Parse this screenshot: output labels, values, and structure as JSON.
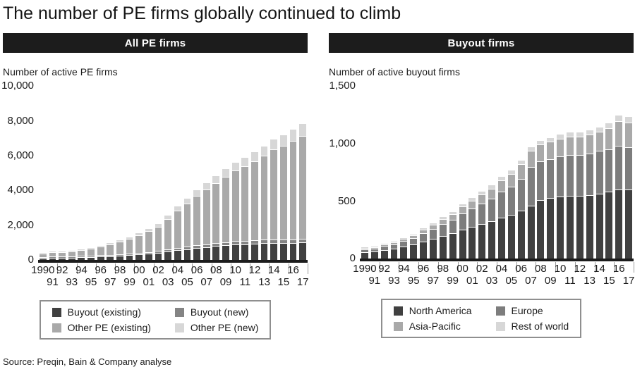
{
  "page": {
    "title": "The number of PE firms globally continued to climb",
    "source": "Source: Preqin, Bain & Company analyse"
  },
  "panels": [
    {
      "band_label": "All PE firms",
      "axis_title": "Number of active PE firms"
    },
    {
      "band_label": "Buyout firms",
      "axis_title": "Number of active buyout firms"
    }
  ],
  "colors": {
    "ink": "#1c1c1c",
    "band_bg": "#1c1c1c",
    "band_text": "#ffffff",
    "axis_tick": "#9b9b9b",
    "legend_border": "#8f8f8f",
    "dark": "#404040",
    "mid_dark": "#848484",
    "mid": "#a9a9a9",
    "light": "#d7d7d7"
  },
  "chart_data": [
    {
      "type": "bar",
      "stacked": true,
      "title": "All PE firms",
      "ylabel": "Number of active PE firms",
      "xlabel": "",
      "ylim": [
        0,
        10000
      ],
      "grid": false,
      "legend_position": "bottom",
      "y_ticks": [
        {
          "v": 10000,
          "label": "10,000"
        },
        {
          "v": 8000,
          "label": "8,000"
        },
        {
          "v": 6000,
          "label": "6,000"
        },
        {
          "v": 4000,
          "label": "4,000"
        },
        {
          "v": 2000,
          "label": "2,000"
        },
        {
          "v": 0,
          "label": "0"
        }
      ],
      "categories": [
        "1990",
        "91",
        "92",
        "93",
        "94",
        "95",
        "96",
        "97",
        "98",
        "99",
        "00",
        "01",
        "02",
        "03",
        "04",
        "05",
        "06",
        "07",
        "08",
        "09",
        "10",
        "11",
        "12",
        "13",
        "14",
        "15",
        "16",
        "17"
      ],
      "series": [
        {
          "name": "Buyout (existing)",
          "color": "#404040",
          "values": [
            60,
            70,
            80,
            95,
            105,
            125,
            145,
            175,
            205,
            240,
            280,
            320,
            365,
            430,
            510,
            575,
            640,
            700,
            755,
            800,
            840,
            870,
            895,
            915,
            935,
            945,
            950,
            955
          ]
        },
        {
          "name": "Buyout (new)",
          "color": "#848484",
          "values": [
            15,
            15,
            15,
            20,
            20,
            25,
            30,
            35,
            40,
            50,
            55,
            60,
            70,
            80,
            95,
            105,
            115,
            125,
            135,
            140,
            145,
            150,
            150,
            155,
            155,
            160,
            160,
            165
          ]
        },
        {
          "name": "Other PE (existing)",
          "color": "#a9a9a9",
          "values": [
            160,
            195,
            220,
            255,
            300,
            375,
            450,
            560,
            670,
            810,
            985,
            1160,
            1350,
            1690,
            2100,
            2440,
            2775,
            3115,
            3415,
            3710,
            3995,
            4250,
            4500,
            4785,
            5130,
            5355,
            5645,
            5870
          ]
        },
        {
          "name": "Other PE (new)",
          "color": "#d7d7d7",
          "values": [
            15,
            20,
            25,
            30,
            35,
            45,
            55,
            70,
            85,
            100,
            120,
            140,
            165,
            200,
            245,
            280,
            320,
            360,
            395,
            430,
            460,
            490,
            515,
            545,
            580,
            600,
            645,
            690
          ]
        }
      ]
    },
    {
      "type": "bar",
      "stacked": true,
      "title": "Buyout firms",
      "ylabel": "Number of active buyout firms",
      "xlabel": "",
      "ylim": [
        0,
        1500
      ],
      "grid": false,
      "legend_position": "bottom",
      "y_ticks": [
        {
          "v": 1500,
          "label": "1,500"
        },
        {
          "v": 1000,
          "label": "1,000"
        },
        {
          "v": 500,
          "label": "500"
        },
        {
          "v": 0,
          "label": "0"
        }
      ],
      "categories": [
        "1990",
        "91",
        "92",
        "93",
        "94",
        "95",
        "96",
        "97",
        "98",
        "99",
        "00",
        "01",
        "02",
        "03",
        "04",
        "05",
        "06",
        "07",
        "08",
        "09",
        "10",
        "11",
        "12",
        "13",
        "14",
        "15",
        "16",
        "17"
      ],
      "series": [
        {
          "name": "North America",
          "color": "#404040",
          "values": [
            48,
            55,
            70,
            79,
            100,
            114,
            140,
            166,
            192,
            212,
            246,
            270,
            292,
            318,
            350,
            376,
            412,
            452,
            500,
            520,
            530,
            536,
            540,
            546,
            560,
            576,
            592,
            596
          ]
        },
        {
          "name": "Europe",
          "color": "#7d7d7d",
          "values": [
            18,
            21,
            28,
            33,
            44,
            52,
            66,
            82,
            98,
            112,
            136,
            154,
            172,
            192,
            218,
            240,
            272,
            330,
            328,
            330,
            342,
            348,
            352,
            356,
            366,
            364,
            374,
            362
          ]
        },
        {
          "name": "Asia-Pacific",
          "color": "#a9a9a9",
          "values": [
            6,
            7,
            9,
            11,
            15,
            18,
            25,
            31,
            38,
            44,
            54,
            62,
            72,
            82,
            94,
            106,
            124,
            132,
            142,
            144,
            148,
            150,
            154,
            158,
            160,
            176,
            210,
            206
          ]
        },
        {
          "name": "Rest of world",
          "color": "#d7d7d7",
          "values": [
            3,
            3,
            5,
            5,
            7,
            8,
            11,
            13,
            16,
            18,
            20,
            24,
            26,
            28,
            30,
            30,
            32,
            32,
            32,
            32,
            34,
            34,
            36,
            38,
            38,
            42,
            50,
            52
          ]
        }
      ]
    }
  ]
}
